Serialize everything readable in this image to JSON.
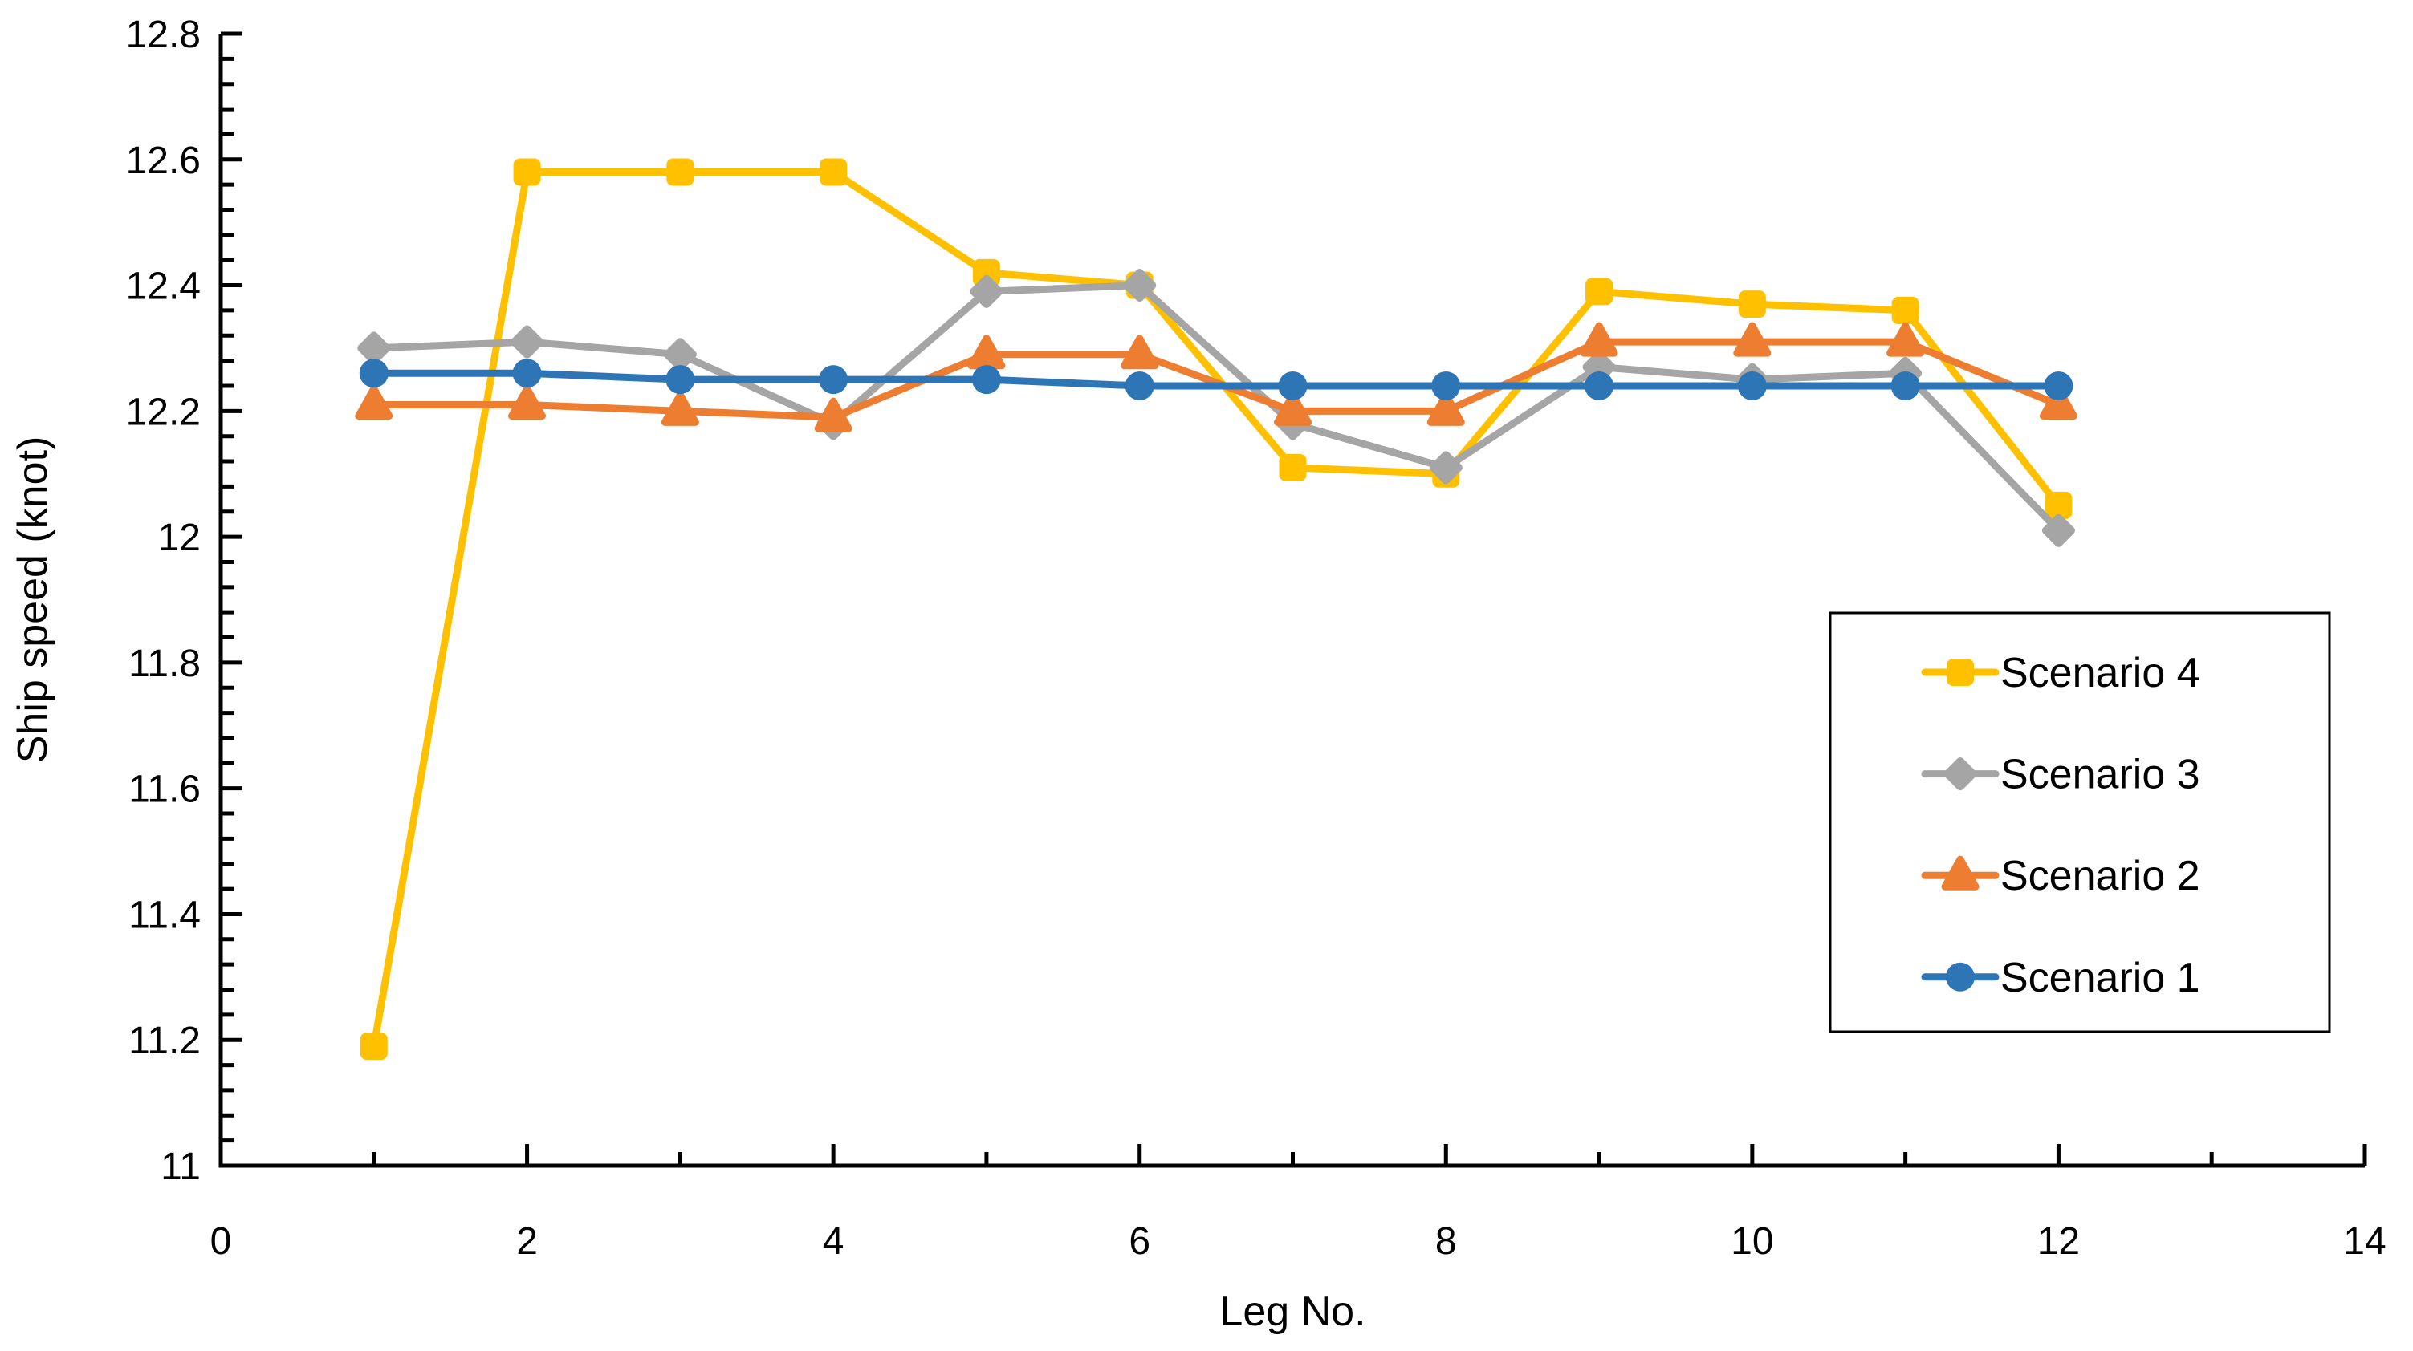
{
  "figure": {
    "background": "#ffffff",
    "axis_color": "#000000"
  },
  "chart_data": {
    "type": "line",
    "title": "",
    "xlabel": "Leg No.",
    "ylabel": "Ship speed (knot)",
    "xlim": [
      0,
      14
    ],
    "ylim": [
      11,
      12.8
    ],
    "grid": false,
    "tick_style": "inside",
    "x_minor_tick_step": 1,
    "x_major_tick_step": 2,
    "y_minor_tick_step": 0.04,
    "y_major_tick_step": 0.2,
    "x_tick_labels": [
      "0",
      "2",
      "4",
      "6",
      "8",
      "10",
      "12",
      "14"
    ],
    "y_tick_labels": [
      "11",
      "11.2",
      "11.4",
      "11.6",
      "11.8",
      "12",
      "12.2",
      "12.4",
      "12.6",
      "12.8"
    ],
    "legend_position": "middle-right",
    "x": [
      1,
      2,
      3,
      4,
      5,
      6,
      7,
      8,
      9,
      10,
      11,
      12
    ],
    "series": [
      {
        "name": "Scenario 4",
        "color": "#FFC000",
        "marker": "square",
        "values": [
          11.19,
          12.58,
          12.58,
          12.58,
          12.42,
          12.4,
          12.11,
          12.1,
          12.39,
          12.37,
          12.36,
          12.05
        ]
      },
      {
        "name": "Scenario 3",
        "color": "#A5A5A5",
        "marker": "diamond",
        "values": [
          12.3,
          12.31,
          12.29,
          12.18,
          12.39,
          12.4,
          12.18,
          12.11,
          12.27,
          12.25,
          12.26,
          12.01
        ]
      },
      {
        "name": "Scenario 2",
        "color": "#ED7D31",
        "marker": "triangle",
        "values": [
          12.21,
          12.21,
          12.2,
          12.19,
          12.29,
          12.29,
          12.2,
          12.2,
          12.31,
          12.31,
          12.31,
          12.21
        ]
      },
      {
        "name": "Scenario 1",
        "color": "#2E75B6",
        "marker": "circle",
        "values": [
          12.26,
          12.26,
          12.25,
          12.25,
          12.25,
          12.24,
          12.24,
          12.24,
          12.24,
          12.24,
          12.24,
          12.24
        ]
      }
    ],
    "legend_order": [
      "Scenario 4",
      "Scenario 3",
      "Scenario 2",
      "Scenario 1"
    ]
  }
}
